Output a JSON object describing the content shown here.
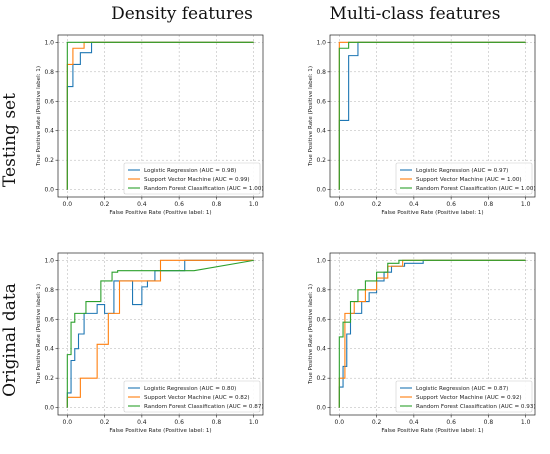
{
  "col_titles": [
    "Density features",
    "Multi-class features"
  ],
  "row_titles": [
    "Testing set",
    "Original data"
  ],
  "colors": {
    "lr": "#1f77b4",
    "svm": "#ff7f0e",
    "rf": "#2ca02c"
  },
  "chart_data": [
    {
      "type": "line",
      "title": "",
      "xlabel": "False Positive Rate (Positive label: 1)",
      "ylabel": "True Positive Rate (Positive label: 1)",
      "xlim": [
        -0.05,
        1.05
      ],
      "ylim": [
        -0.05,
        1.05
      ],
      "ticks": [
        0.0,
        0.2,
        0.4,
        0.6,
        0.8,
        1.0
      ],
      "grid": true,
      "legend": "lower-right",
      "series": [
        {
          "name": "Logistic Regression (AUC = 0.98)",
          "x": [
            0,
            0,
            0.03,
            0.03,
            0.07,
            0.07,
            0.13,
            0.13,
            1.0
          ],
          "y": [
            0,
            0.7,
            0.7,
            0.85,
            0.85,
            0.93,
            0.93,
            1.0,
            1.0
          ]
        },
        {
          "name": "Support Vector Machine (AUC = 0.99)",
          "x": [
            0,
            0,
            0.03,
            0.03,
            0.09,
            0.09,
            1.0
          ],
          "y": [
            0,
            0.85,
            0.85,
            0.96,
            0.96,
            1.0,
            1.0
          ]
        },
        {
          "name": "Random Forest Classification (AUC = 1.00)",
          "x": [
            0,
            0,
            1.0
          ],
          "y": [
            0,
            1.0,
            1.0
          ]
        }
      ]
    },
    {
      "type": "line",
      "title": "",
      "xlabel": "False Positive Rate (Positive label: 1)",
      "ylabel": "True Positive Rate (Positive label: 1)",
      "xlim": [
        -0.05,
        1.05
      ],
      "ylim": [
        -0.05,
        1.05
      ],
      "ticks": [
        0.0,
        0.2,
        0.4,
        0.6,
        0.8,
        1.0
      ],
      "grid": true,
      "legend": "lower-right",
      "series": [
        {
          "name": "Logistic Regression (AUC = 0.97)",
          "x": [
            0,
            0,
            0.05,
            0.05,
            0.1,
            0.1,
            1.0
          ],
          "y": [
            0,
            0.47,
            0.47,
            0.91,
            0.91,
            1.0,
            1.0
          ]
        },
        {
          "name": "Support Vector Machine (AUC = 1.00)",
          "x": [
            0,
            0,
            1.0
          ],
          "y": [
            0,
            1.0,
            1.0
          ]
        },
        {
          "name": "Random Forest Classification (AUC = 1.00)",
          "x": [
            0,
            0,
            0.05,
            0.05,
            1.0
          ],
          "y": [
            0,
            0.96,
            0.96,
            1.0,
            1.0
          ]
        }
      ]
    },
    {
      "type": "line",
      "title": "",
      "xlabel": "False Positive Rate (Positive label: 1)",
      "ylabel": "True Positive Rate (Positive label: 1)",
      "xlim": [
        -0.05,
        1.05
      ],
      "ylim": [
        -0.05,
        1.05
      ],
      "ticks": [
        0.0,
        0.2,
        0.4,
        0.6,
        0.8,
        1.0
      ],
      "grid": true,
      "legend": "lower-right",
      "series": [
        {
          "name": "Logistic Regression (AUC = 0.80)",
          "x": [
            0,
            0,
            0.02,
            0.02,
            0.04,
            0.04,
            0.06,
            0.06,
            0.09,
            0.09,
            0.16,
            0.16,
            0.2,
            0.2,
            0.25,
            0.25,
            0.35,
            0.35,
            0.4,
            0.4,
            0.43,
            0.43,
            0.47,
            0.47,
            0.63,
            0.63,
            1.0
          ],
          "y": [
            0,
            0.1,
            0.1,
            0.32,
            0.32,
            0.4,
            0.4,
            0.5,
            0.5,
            0.64,
            0.64,
            0.7,
            0.7,
            0.64,
            0.64,
            0.86,
            0.86,
            0.7,
            0.7,
            0.82,
            0.82,
            0.86,
            0.86,
            0.93,
            0.93,
            1.0,
            1.0
          ]
        },
        {
          "name": "Support Vector Machine (AUC = 0.82)",
          "x": [
            0,
            0,
            0.07,
            0.07,
            0.16,
            0.16,
            0.22,
            0.22,
            0.28,
            0.28,
            0.5,
            0.5,
            0.82,
            0.82,
            1.0
          ],
          "y": [
            0,
            0.07,
            0.07,
            0.2,
            0.2,
            0.43,
            0.43,
            0.64,
            0.64,
            0.86,
            0.86,
            1.0,
            1.0,
            1.0,
            1.0
          ]
        },
        {
          "name": "Random Forest Classification (AUC = 0.87)",
          "x": [
            0,
            0,
            0.02,
            0.02,
            0.04,
            0.04,
            0.1,
            0.1,
            0.18,
            0.18,
            0.24,
            0.24,
            0.27,
            0.27,
            0.68,
            1.0
          ],
          "y": [
            0,
            0.36,
            0.36,
            0.58,
            0.58,
            0.64,
            0.64,
            0.72,
            0.72,
            0.86,
            0.86,
            0.92,
            0.92,
            0.93,
            0.93,
            1.0
          ]
        }
      ]
    },
    {
      "type": "line",
      "title": "",
      "xlabel": "False Positive Rate (Positive label: 1)",
      "ylabel": "True Positive Rate (Positive label: 1)",
      "xlim": [
        -0.05,
        1.05
      ],
      "ylim": [
        -0.05,
        1.05
      ],
      "ticks": [
        0.0,
        0.2,
        0.4,
        0.6,
        0.8,
        1.0
      ],
      "grid": true,
      "legend": "lower-right",
      "series": [
        {
          "name": "Logistic Regression (AUC = 0.87)",
          "x": [
            0,
            0,
            0.02,
            0.02,
            0.04,
            0.04,
            0.06,
            0.06,
            0.12,
            0.12,
            0.16,
            0.16,
            0.2,
            0.2,
            0.24,
            0.24,
            0.28,
            0.28,
            0.35,
            0.35,
            0.45,
            0.45,
            1.0
          ],
          "y": [
            0,
            0.14,
            0.14,
            0.28,
            0.28,
            0.5,
            0.5,
            0.64,
            0.64,
            0.72,
            0.72,
            0.78,
            0.78,
            0.86,
            0.86,
            0.92,
            0.92,
            0.96,
            0.96,
            0.98,
            0.98,
            1.0,
            1.0
          ]
        },
        {
          "name": "Support Vector Machine (AUC = 0.92)",
          "x": [
            0,
            0,
            0.03,
            0.03,
            0.08,
            0.08,
            0.14,
            0.14,
            0.2,
            0.2,
            0.26,
            0.26,
            0.34,
            0.34,
            1.0
          ],
          "y": [
            0,
            0.2,
            0.2,
            0.64,
            0.64,
            0.72,
            0.72,
            0.8,
            0.8,
            0.88,
            0.88,
            0.96,
            0.96,
            1.0,
            1.0
          ]
        },
        {
          "name": "Random Forest Classification (AUC = 0.93)",
          "x": [
            0,
            0,
            0.02,
            0.02,
            0.06,
            0.06,
            0.1,
            0.1,
            0.14,
            0.14,
            0.2,
            0.2,
            0.26,
            0.26,
            0.32,
            0.32,
            1.0
          ],
          "y": [
            0,
            0.48,
            0.48,
            0.58,
            0.58,
            0.72,
            0.72,
            0.8,
            0.8,
            0.86,
            0.86,
            0.92,
            0.92,
            0.98,
            0.98,
            1.0,
            1.0
          ]
        }
      ]
    }
  ]
}
